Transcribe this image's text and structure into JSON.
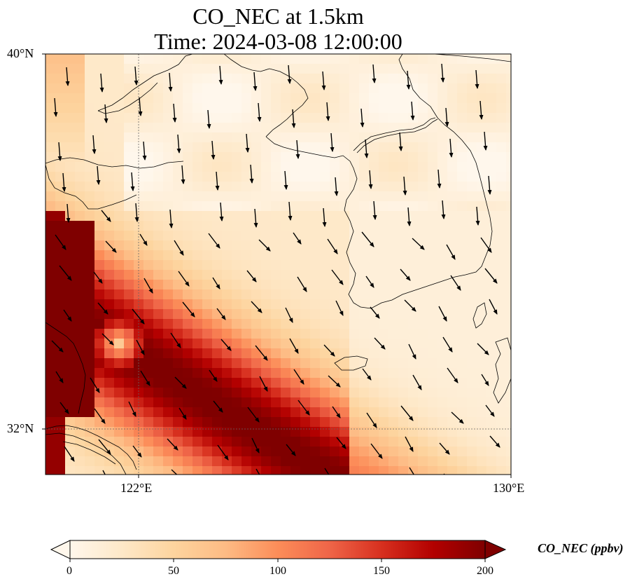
{
  "title": {
    "line1": "CO_NEC at 1.5km",
    "line2": "Time: 2024-03-08 12:00:00"
  },
  "axes": {
    "y_ticks": [
      "40°N",
      "32°N"
    ],
    "x_ticks": [
      "122°E",
      "130°E"
    ],
    "lon_range": [
      120,
      130
    ],
    "lat_range": [
      31,
      40
    ],
    "gridlines": "dotted at 122°E and 32°N"
  },
  "colorbar": {
    "label": "CO_NEC (ppbv)",
    "ticks": [
      "0",
      "50",
      "100",
      "150",
      "200"
    ],
    "range": [
      0,
      200
    ],
    "colormap": "OrRd",
    "extend": "both"
  },
  "colors": {
    "ramp": [
      "#fff7ec",
      "#fee8c8",
      "#fdd49e",
      "#fdbb84",
      "#fc8d59",
      "#ef6548",
      "#d7301f",
      "#b30000",
      "#7f0000"
    ],
    "coast": "#000000",
    "arrow": "#000000"
  }
}
